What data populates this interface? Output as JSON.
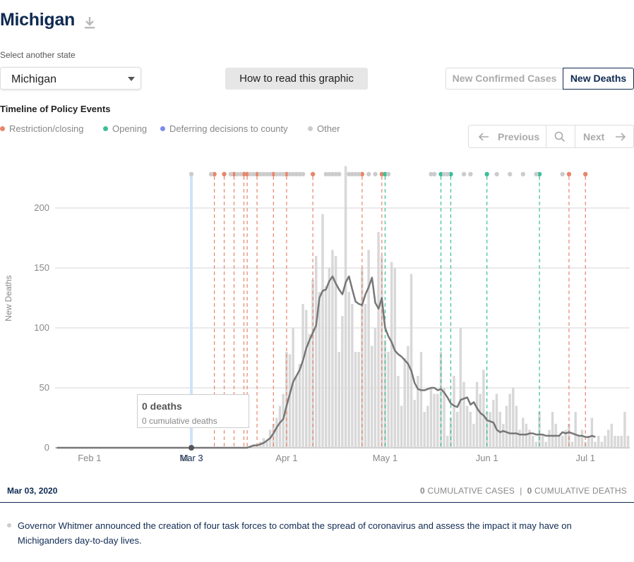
{
  "header": {
    "state_title": "Michigan",
    "download_icon": "download-icon"
  },
  "controls": {
    "select_label": "Select another state",
    "selected_state": "Michigan",
    "howto_label": "How to read this graphic",
    "toggle_cases": "New Confirmed Cases",
    "toggle_deaths": "New Deaths",
    "active_toggle": "New Deaths"
  },
  "timeline": {
    "title": "Timeline of Policy Events",
    "legend": [
      {
        "label": "Restriction/closing",
        "color": "#e8856a"
      },
      {
        "label": "Opening",
        "color": "#3bbf9b"
      },
      {
        "label": "Deferring decisions to county",
        "color": "#7a8cf0"
      },
      {
        "label": "Other",
        "color": "#cccccc"
      }
    ],
    "nav": {
      "prev_label": "Previous",
      "next_label": "Next",
      "search_icon": "search-icon"
    }
  },
  "tooltip": {
    "deaths": "0 deaths",
    "cumulative": "0 cumulative deaths"
  },
  "footer": {
    "date": "Mar 03, 2020",
    "cum_cases_num": "0",
    "cum_cases_label": "CUMULATIVE CASES",
    "cum_deaths_num": "0",
    "cum_deaths_label": "CUMULATIVE DEATHS",
    "separator": "|",
    "event_text": "Governor Whitmer announced the creation of four task forces to combat the spread of coronavirus and assess the impact it may have on Michiganders day-to-day lives."
  },
  "chart_data": {
    "type": "bar",
    "ylabel": "New Deaths",
    "ylim": [
      0,
      220
    ],
    "yticks": [
      0,
      50,
      100,
      150,
      200
    ],
    "x_start": "2020-01-22",
    "xticks": [
      {
        "label": "Feb 1",
        "date": "2020-02-01"
      },
      {
        "label": "M",
        "date": "2020-03-01"
      },
      {
        "label": "Apr 1",
        "date": "2020-04-01"
      },
      {
        "label": "May 1",
        "date": "2020-05-01"
      },
      {
        "label": "Jun 1",
        "date": "2020-06-01"
      },
      {
        "label": "Jul 1",
        "date": "2020-07-01"
      }
    ],
    "highlight": {
      "label": "Mar 3",
      "date": "2020-03-03"
    },
    "values": [
      0,
      0,
      0,
      0,
      0,
      0,
      0,
      0,
      0,
      0,
      0,
      0,
      0,
      0,
      0,
      0,
      0,
      0,
      0,
      0,
      0,
      0,
      0,
      0,
      0,
      0,
      0,
      0,
      0,
      0,
      0,
      0,
      0,
      0,
      0,
      0,
      0,
      0,
      0,
      0,
      0,
      0,
      0,
      0,
      0,
      0,
      0,
      0,
      0,
      0,
      0,
      0,
      0,
      0,
      0,
      0,
      0,
      0,
      1,
      0,
      2,
      3,
      5,
      8,
      6,
      15,
      20,
      25,
      35,
      45,
      80,
      78,
      100,
      60,
      70,
      120,
      115,
      95,
      140,
      160,
      130,
      195,
      135,
      150,
      165,
      160,
      80,
      110,
      235,
      130,
      120,
      80,
      80,
      150,
      120,
      165,
      85,
      100,
      180,
      160,
      90,
      80,
      155,
      150,
      60,
      35,
      75,
      85,
      145,
      40,
      60,
      80,
      30,
      35,
      50,
      45,
      45,
      80,
      50,
      10,
      25,
      60,
      30,
      100,
      55,
      35,
      30,
      20,
      55,
      45,
      65,
      30,
      30,
      40,
      45,
      30,
      20,
      35,
      45,
      50,
      35,
      15,
      25,
      20,
      15,
      10,
      5,
      30,
      10,
      5,
      15,
      30,
      20,
      10,
      10,
      15,
      20,
      5,
      30,
      10,
      15,
      5,
      10,
      25,
      5,
      10,
      5,
      10,
      15,
      20,
      10,
      10,
      10,
      30,
      10
    ],
    "avg": [
      0,
      0,
      0,
      0,
      0,
      0,
      0,
      0,
      0,
      0,
      0,
      0,
      0,
      0,
      0,
      0,
      0,
      0,
      0,
      0,
      0,
      0,
      0,
      0,
      0,
      0,
      0,
      0,
      0,
      0,
      0,
      0,
      0,
      0,
      0,
      0,
      0,
      0,
      0,
      0,
      0,
      0,
      0,
      0,
      0,
      0,
      0,
      0,
      0,
      0,
      0,
      0,
      0,
      0,
      0,
      0,
      0,
      0,
      0,
      1,
      2,
      2,
      3,
      4,
      6,
      8,
      12,
      17,
      21,
      24,
      35,
      45,
      55,
      60,
      65,
      73,
      83,
      90,
      96,
      102,
      125,
      131,
      132,
      139,
      143,
      137,
      132,
      128,
      138,
      143,
      132,
      122,
      120,
      119,
      128,
      134,
      142,
      121,
      116,
      125,
      100,
      93,
      88,
      81,
      78,
      76,
      73,
      70,
      64,
      54,
      49,
      48,
      48,
      49,
      50,
      50,
      48,
      49,
      46,
      42,
      37,
      35,
      34,
      40,
      41,
      42,
      36,
      38,
      33,
      29,
      27,
      23,
      22,
      21,
      15,
      13,
      14,
      13,
      12,
      12,
      12,
      11,
      11,
      11,
      12,
      12,
      11,
      11,
      11,
      10,
      10,
      10,
      10,
      10,
      13,
      12,
      13,
      12,
      11,
      10,
      10,
      9,
      9,
      10,
      9
    ]
  },
  "policy_events": [
    {
      "date": "2020-03-03",
      "category": "Other",
      "color": "#cccccc",
      "line": true
    },
    {
      "date": "2020-03-10",
      "category": "Restriction/closing",
      "color": "#e8856a",
      "line": true
    },
    {
      "date": "2020-03-13",
      "category": "Restriction/closing",
      "color": "#e8856a",
      "line": true
    },
    {
      "date": "2020-03-16",
      "category": "Restriction/closing",
      "color": "#e8856a",
      "line": true
    },
    {
      "date": "2020-03-19",
      "category": "Restriction/closing",
      "color": "#e8856a",
      "line": true
    },
    {
      "date": "2020-03-20",
      "category": "Restriction/closing",
      "color": "#e8856a",
      "line": true
    },
    {
      "date": "2020-03-23",
      "category": "Restriction/closing",
      "color": "#e8856a",
      "line": true
    },
    {
      "date": "2020-03-28",
      "category": "Restriction/closing",
      "color": "#e8856a",
      "line": true
    },
    {
      "date": "2020-04-01",
      "category": "Restriction/closing",
      "color": "#e8856a",
      "line": true
    },
    {
      "date": "2020-04-09",
      "category": "Restriction/closing",
      "color": "#e8856a",
      "line": true
    },
    {
      "date": "2020-04-24",
      "category": "Restriction/closing",
      "color": "#e8856a",
      "line": true
    },
    {
      "date": "2020-04-30",
      "category": "Restriction/closing",
      "color": "#e8856a",
      "line": true
    },
    {
      "date": "2020-05-01",
      "category": "Opening",
      "color": "#3bbf9b",
      "line": true
    },
    {
      "date": "2020-05-18",
      "category": "Opening",
      "color": "#3bbf9b",
      "line": true
    },
    {
      "date": "2020-05-21",
      "category": "Opening",
      "color": "#3bbf9b",
      "line": true
    },
    {
      "date": "2020-06-01",
      "category": "Opening",
      "color": "#3bbf9b",
      "line": true
    },
    {
      "date": "2020-06-17",
      "category": "Opening",
      "color": "#3bbf9b",
      "line": true
    },
    {
      "date": "2020-06-26",
      "category": "Restriction/closing",
      "color": "#e8856a",
      "line": true
    },
    {
      "date": "2020-07-01",
      "category": "Restriction/closing",
      "color": "#e8856a",
      "line": true
    },
    {
      "date": "2020-03-09",
      "category": "Other",
      "color": "#cccccc",
      "line": false
    },
    {
      "date": "2020-03-15",
      "category": "Other",
      "color": "#cccccc",
      "line": false
    },
    {
      "date": "2020-03-17",
      "category": "Other",
      "color": "#cccccc",
      "line": false
    },
    {
      "date": "2020-03-18",
      "category": "Other",
      "color": "#cccccc",
      "line": false
    },
    {
      "date": "2020-03-21",
      "category": "Other",
      "color": "#cccccc",
      "line": false
    },
    {
      "date": "2020-03-22",
      "category": "Other",
      "color": "#cccccc",
      "line": false
    },
    {
      "date": "2020-03-24",
      "category": "Other",
      "color": "#cccccc",
      "line": false
    },
    {
      "date": "2020-03-25",
      "category": "Other",
      "color": "#cccccc",
      "line": false
    },
    {
      "date": "2020-03-26",
      "category": "Other",
      "color": "#cccccc",
      "line": false
    },
    {
      "date": "2020-03-27",
      "category": "Other",
      "color": "#cccccc",
      "line": false
    },
    {
      "date": "2020-03-29",
      "category": "Other",
      "color": "#cccccc",
      "line": false
    },
    {
      "date": "2020-03-30",
      "category": "Other",
      "color": "#cccccc",
      "line": false
    },
    {
      "date": "2020-03-31",
      "category": "Other",
      "color": "#cccccc",
      "line": false
    },
    {
      "date": "2020-04-02",
      "category": "Other",
      "color": "#cccccc",
      "line": false
    },
    {
      "date": "2020-04-03",
      "category": "Other",
      "color": "#cccccc",
      "line": false
    },
    {
      "date": "2020-04-04",
      "category": "Other",
      "color": "#cccccc",
      "line": false
    },
    {
      "date": "2020-04-05",
      "category": "Other",
      "color": "#cccccc",
      "line": false
    },
    {
      "date": "2020-04-06",
      "category": "Other",
      "color": "#cccccc",
      "line": false
    },
    {
      "date": "2020-04-13",
      "category": "Other",
      "color": "#cccccc",
      "line": false
    },
    {
      "date": "2020-04-14",
      "category": "Other",
      "color": "#cccccc",
      "line": false
    },
    {
      "date": "2020-04-15",
      "category": "Other",
      "color": "#cccccc",
      "line": false
    },
    {
      "date": "2020-04-16",
      "category": "Other",
      "color": "#cccccc",
      "line": false
    },
    {
      "date": "2020-04-17",
      "category": "Other",
      "color": "#cccccc",
      "line": false
    },
    {
      "date": "2020-04-20",
      "category": "Other",
      "color": "#cccccc",
      "line": false
    },
    {
      "date": "2020-04-21",
      "category": "Other",
      "color": "#cccccc",
      "line": false
    },
    {
      "date": "2020-04-22",
      "category": "Other",
      "color": "#cccccc",
      "line": false
    },
    {
      "date": "2020-04-23",
      "category": "Other",
      "color": "#cccccc",
      "line": false
    },
    {
      "date": "2020-04-26",
      "category": "Other",
      "color": "#cccccc",
      "line": false
    },
    {
      "date": "2020-04-28",
      "category": "Other",
      "color": "#cccccc",
      "line": false
    },
    {
      "date": "2020-05-02",
      "category": "Other",
      "color": "#cccccc",
      "line": false
    },
    {
      "date": "2020-05-15",
      "category": "Other",
      "color": "#cccccc",
      "line": false
    },
    {
      "date": "2020-05-16",
      "category": "Other",
      "color": "#cccccc",
      "line": false
    },
    {
      "date": "2020-05-19",
      "category": "Other",
      "color": "#cccccc",
      "line": false
    },
    {
      "date": "2020-05-20",
      "category": "Other",
      "color": "#cccccc",
      "line": false
    },
    {
      "date": "2020-05-25",
      "category": "Other",
      "color": "#cccccc",
      "line": false
    },
    {
      "date": "2020-05-27",
      "category": "Other",
      "color": "#cccccc",
      "line": false
    },
    {
      "date": "2020-06-04",
      "category": "Other",
      "color": "#cccccc",
      "line": false
    },
    {
      "date": "2020-06-08",
      "category": "Other",
      "color": "#cccccc",
      "line": false
    },
    {
      "date": "2020-06-12",
      "category": "Other",
      "color": "#cccccc",
      "line": false
    },
    {
      "date": "2020-06-16",
      "category": "Other",
      "color": "#cccccc",
      "line": false
    },
    {
      "date": "2020-06-24",
      "category": "Other",
      "color": "#cccccc",
      "line": false
    }
  ]
}
